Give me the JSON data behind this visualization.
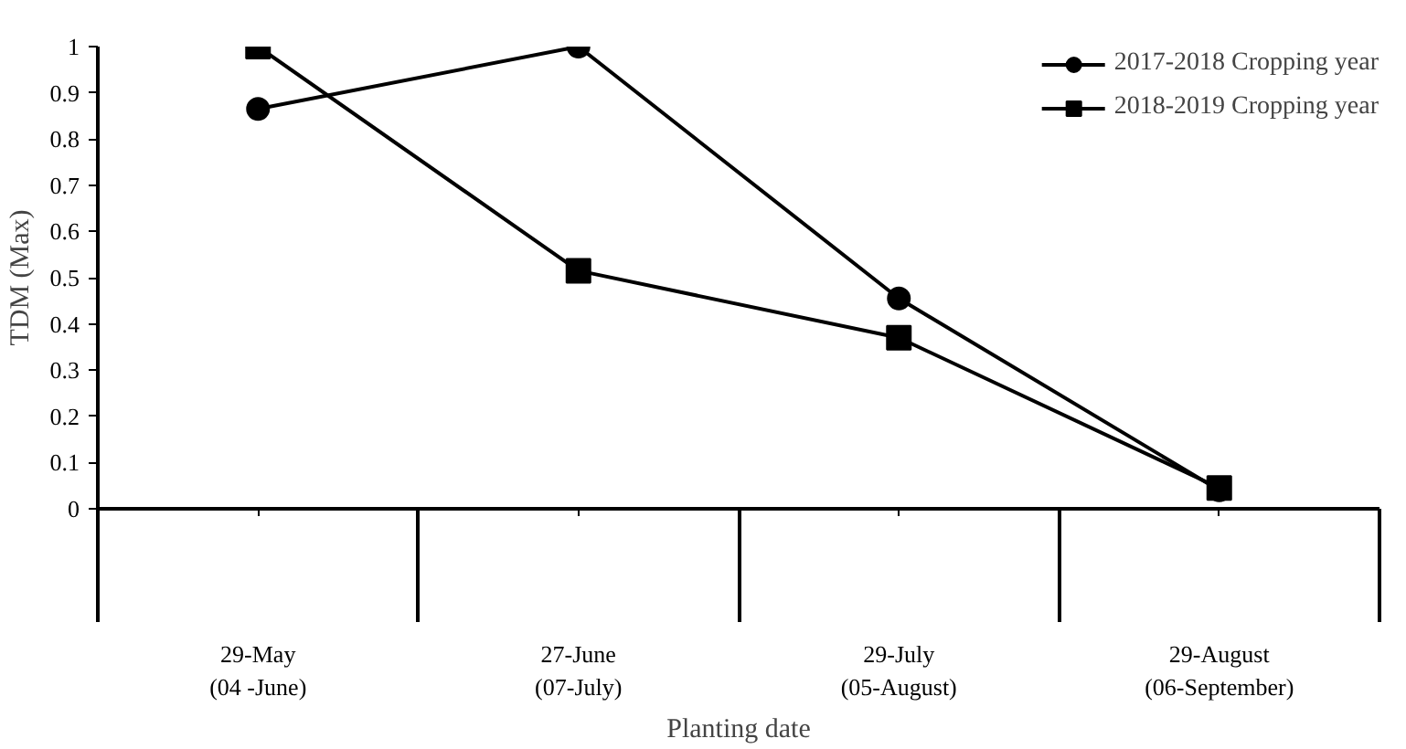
{
  "chart_data": {
    "type": "line",
    "xlabel": "Planting date",
    "ylabel": "TDM (Max)",
    "categories": [
      "29-May\n(04 -June)",
      "27-June\n(07-July)",
      "29-July\n(05-August)",
      "29-August\n(06-September)"
    ],
    "series": [
      {
        "name": "2017-2018 Cropping year",
        "color": "#000000",
        "marker": "circle",
        "values": [
          0.865,
          1.0,
          0.455,
          0.04
        ]
      },
      {
        "name": "2018-2019 Cropping year",
        "color": "#000000",
        "marker": "square",
        "values": [
          1.0,
          0.515,
          0.37,
          0.045
        ]
      }
    ],
    "ylim": [
      0,
      1
    ],
    "yticks": [
      0,
      0.1,
      0.2,
      0.3,
      0.4,
      0.5,
      0.6,
      0.7,
      0.8,
      0.9,
      1
    ],
    "grid": false,
    "legend": "top right",
    "line_style": "solid"
  }
}
